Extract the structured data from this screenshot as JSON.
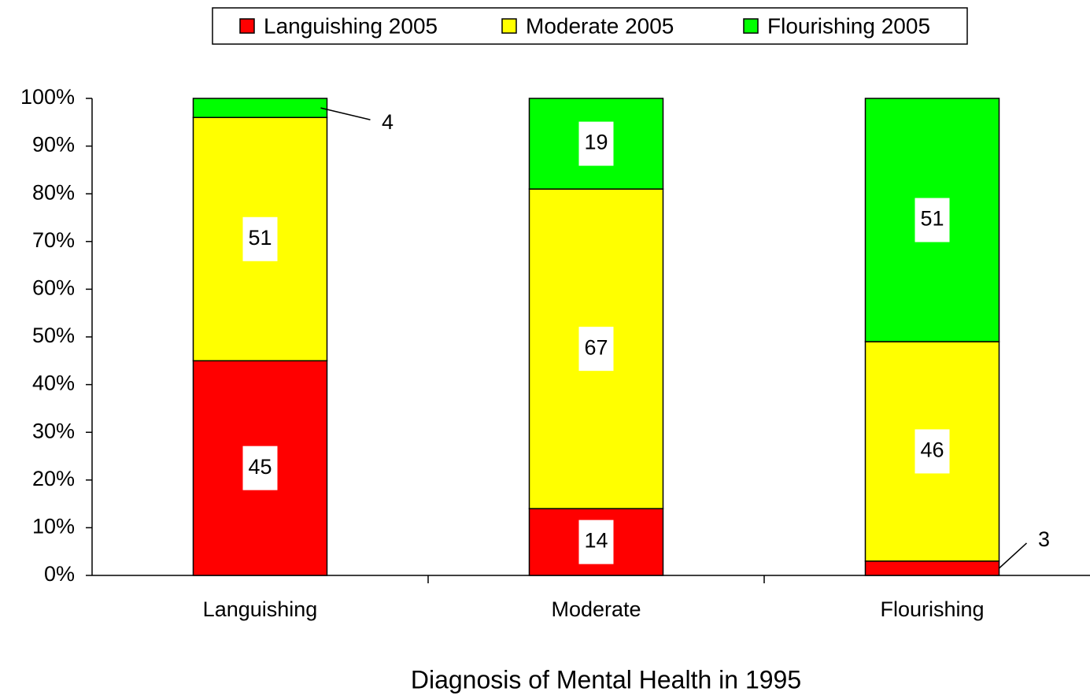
{
  "chart_data": {
    "type": "stacked_bar",
    "xlabel": "Diagnosis of Mental Health in 1995",
    "categories": [
      "Languishing",
      "Moderate",
      "Flourishing"
    ],
    "series": [
      {
        "name": "Languishing 2005",
        "color": "#ff0000",
        "values": [
          45,
          14,
          3
        ]
      },
      {
        "name": "Moderate 2005",
        "color": "#ffff00",
        "values": [
          51,
          67,
          46
        ]
      },
      {
        "name": "Flourishing 2005",
        "color": "#00ff00",
        "values": [
          4,
          19,
          51
        ]
      }
    ],
    "ylim": [
      0,
      100
    ],
    "yticks": [
      {
        "value": 0,
        "label": "0%"
      },
      {
        "value": 10,
        "label": "10%"
      },
      {
        "value": 20,
        "label": "20%"
      },
      {
        "value": 30,
        "label": "30%"
      },
      {
        "value": 40,
        "label": "40%"
      },
      {
        "value": 50,
        "label": "50%"
      },
      {
        "value": 60,
        "label": "60%"
      },
      {
        "value": 70,
        "label": "70%"
      },
      {
        "value": 80,
        "label": "80%"
      },
      {
        "value": 90,
        "label": "90%"
      },
      {
        "value": 100,
        "label": "100%"
      }
    ],
    "legend": "top",
    "grid": false
  }
}
